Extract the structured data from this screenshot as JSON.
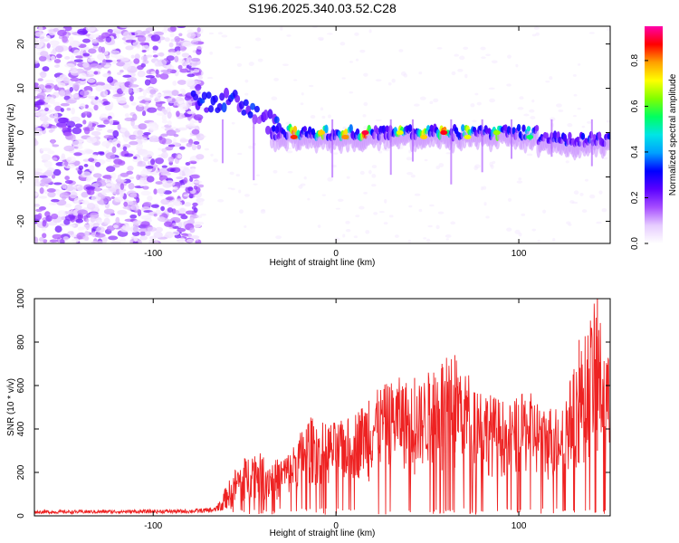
{
  "title": "S196.2025.340.03.52.C28",
  "charts": [
    {
      "type": "heatmap",
      "name": "spectrogram",
      "xlabel": "Height of straight line (km)",
      "ylabel": "Frequency (Hz)",
      "xlim": [
        -165,
        150
      ],
      "ylim": [
        -25,
        24
      ],
      "xticks": [
        -100,
        0,
        100
      ],
      "yticks": [
        -20,
        -10,
        0,
        10,
        20
      ],
      "colorbar": {
        "label": "Normalized spectral amplitude",
        "ticks": [
          0.0,
          0.2,
          0.4,
          0.6,
          0.8
        ],
        "range": [
          0,
          0.95
        ],
        "colormap": [
          "#ffffff",
          "#e6ccff",
          "#a64dff",
          "#5a00ff",
          "#0000ff",
          "#00a0ff",
          "#00e5e5",
          "#00ff60",
          "#80ff00",
          "#ffff00",
          "#ffa000",
          "#ff0000",
          "#ff00aa"
        ]
      },
      "noise_region_x": [
        -165,
        -80
      ],
      "band_start_x": -78,
      "band_center_freq": 0,
      "hotspots": [
        {
          "x": -23,
          "f": -1,
          "amp": 0.85
        },
        {
          "x": -8,
          "f": 0,
          "amp": 0.75
        },
        {
          "x": 5,
          "f": -1,
          "amp": 0.8
        },
        {
          "x": 16,
          "f": 0,
          "amp": 0.9
        },
        {
          "x": 35,
          "f": 0,
          "amp": 0.7
        },
        {
          "x": 48,
          "f": -1,
          "amp": 0.75
        },
        {
          "x": 59,
          "f": 0,
          "amp": 0.88
        },
        {
          "x": 72,
          "f": -1,
          "amp": 0.7
        },
        {
          "x": 88,
          "f": 0,
          "amp": 0.65
        },
        {
          "x": 106,
          "f": -1,
          "amp": 0.55
        }
      ]
    },
    {
      "type": "line",
      "name": "snr",
      "xlabel": "Height of straight line (km)",
      "ylabel": "SNR (10 * v/v)",
      "xlim": [
        -165,
        150
      ],
      "ylim": [
        0,
        1000
      ],
      "xticks": [
        -100,
        0,
        100
      ],
      "yticks": [
        0,
        200,
        400,
        600,
        800,
        1000
      ],
      "color": "#ee2222",
      "envelope": {
        "x": [
          -165,
          -80,
          -66,
          -55,
          -45,
          -35,
          -25,
          -15,
          -5,
          5,
          15,
          25,
          35,
          45,
          55,
          65,
          75,
          85,
          95,
          105,
          115,
          125,
          135,
          142,
          150
        ],
        "peak": [
          25,
          30,
          40,
          220,
          310,
          250,
          300,
          460,
          430,
          440,
          520,
          600,
          640,
          600,
          720,
          740,
          640,
          560,
          520,
          580,
          500,
          560,
          800,
          1000,
          700
        ],
        "base": [
          10,
          12,
          15,
          40,
          80,
          60,
          90,
          140,
          130,
          150,
          170,
          200,
          210,
          200,
          230,
          240,
          210,
          180,
          170,
          180,
          150,
          170,
          230,
          280,
          200
        ]
      },
      "notable_peaks": [
        {
          "x": -50,
          "y": 265
        },
        {
          "x": 18,
          "y": 530
        },
        {
          "x": 43,
          "y": 635
        },
        {
          "x": 58,
          "y": 700
        },
        {
          "x": 65,
          "y": 740
        },
        {
          "x": 133,
          "y": 810
        },
        {
          "x": 143,
          "y": 1000
        }
      ]
    }
  ]
}
